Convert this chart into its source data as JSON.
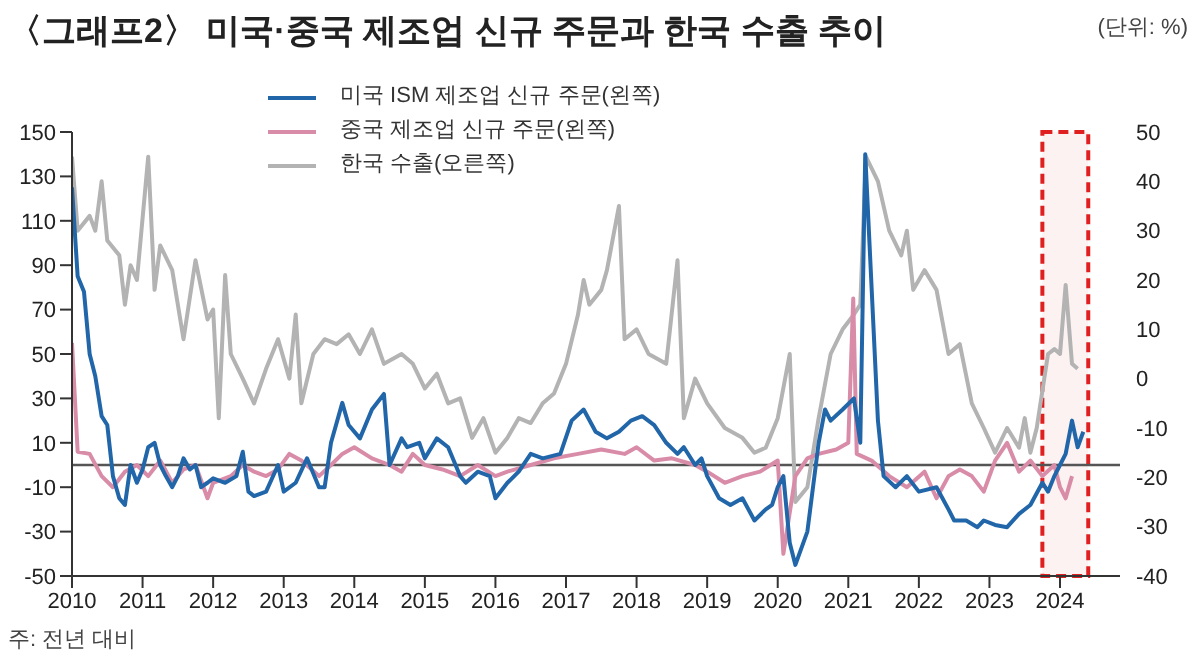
{
  "chart_data": {
    "type": "line",
    "title": "〈그래프2〉 미국·중국 제조업 신규 주문과 한국 수출 추이",
    "annotations": [
      "(단위: %)",
      "주: 전년 대비"
    ],
    "xlim": [
      2010,
      2024.85
    ],
    "xticks": [
      2010,
      2011,
      2012,
      2013,
      2014,
      2015,
      2016,
      2017,
      2018,
      2019,
      2020,
      2021,
      2022,
      2023,
      2024
    ],
    "ylim": [
      -50,
      150
    ],
    "yticks": [
      -50,
      -30,
      -10,
      10,
      30,
      50,
      70,
      90,
      110,
      130,
      150
    ],
    "y2lim": [
      -40,
      50
    ],
    "y2ticks": [
      -40,
      -30,
      -20,
      -10,
      0,
      10,
      20,
      30,
      40,
      50
    ],
    "legend": "top",
    "marker": "none",
    "line_style": "solid",
    "ref_lines": [
      {
        "axis": "y",
        "value": 0,
        "color": "#555555"
      }
    ],
    "bands": [
      {
        "axis": "x",
        "from": 2023.75,
        "to": 2024.4,
        "color": "#e02020"
      }
    ],
    "series": [
      {
        "name": "한국 수출(오른쪽)",
        "color": "#b3b3b3",
        "axis": "y2",
        "x": [
          2010,
          2010.08,
          2010.25,
          2010.33,
          2010.42,
          2010.5,
          2010.67,
          2010.75,
          2010.83,
          2010.92,
          2011.08,
          2011.17,
          2011.25,
          2011.42,
          2011.58,
          2011.75,
          2011.92,
          2012,
          2012.08,
          2012.17,
          2012.25,
          2012.42,
          2012.58,
          2012.75,
          2012.92,
          2013.08,
          2013.17,
          2013.25,
          2013.42,
          2013.58,
          2013.75,
          2013.92,
          2014.08,
          2014.25,
          2014.42,
          2014.67,
          2014.83,
          2015,
          2015.17,
          2015.33,
          2015.5,
          2015.67,
          2015.83,
          2016,
          2016.17,
          2016.33,
          2016.5,
          2016.67,
          2016.83,
          2017,
          2017.17,
          2017.25,
          2017.33,
          2017.5,
          2017.58,
          2017.75,
          2017.83,
          2018,
          2018.17,
          2018.42,
          2018.58,
          2018.67,
          2018.83,
          2019,
          2019.25,
          2019.5,
          2019.67,
          2019.83,
          2020,
          2020.17,
          2020.25,
          2020.42,
          2020.58,
          2020.75,
          2020.92,
          2021.08,
          2021.17,
          2021.25,
          2021.42,
          2021.58,
          2021.75,
          2021.83,
          2021.92,
          2022.08,
          2022.25,
          2022.42,
          2022.58,
          2022.75,
          2022.92,
          2023.08,
          2023.25,
          2023.42,
          2023.5,
          2023.58,
          2023.67,
          2023.83,
          2023.92,
          2024,
          2024.08,
          2024.17,
          2024.25
        ],
        "values": [
          45,
          30,
          33,
          30,
          40,
          28,
          25,
          15,
          23,
          20,
          45,
          18,
          27,
          22,
          8,
          24,
          12,
          14,
          -8,
          21,
          5,
          0,
          -5,
          2,
          8,
          0,
          13,
          -5,
          5,
          8,
          7,
          9,
          5,
          10,
          3,
          5,
          3,
          -2,
          1,
          -5,
          -4,
          -12,
          -8,
          -15,
          -12,
          -8,
          -9,
          -5,
          -3,
          3,
          13,
          20,
          15,
          18,
          22,
          35,
          8,
          10,
          5,
          3,
          24,
          -8,
          0,
          -5,
          -10,
          -12,
          -15,
          -14,
          -8,
          5,
          -25,
          -22,
          -8,
          5,
          10,
          13,
          15,
          45,
          40,
          30,
          25,
          30,
          18,
          22,
          18,
          5,
          7,
          -5,
          -10,
          -15,
          -10,
          -14,
          -8,
          -15,
          -10,
          5,
          6,
          5,
          19,
          3,
          2
        ]
      },
      {
        "name": "중국 제조업 신규 주문(왼쪽)",
        "color": "#d98ca8",
        "x": [
          2010,
          2010.08,
          2010.25,
          2010.42,
          2010.58,
          2010.75,
          2010.92,
          2011.08,
          2011.25,
          2011.42,
          2011.58,
          2011.75,
          2011.92,
          2012,
          2012.25,
          2012.42,
          2012.58,
          2012.75,
          2012.92,
          2013.08,
          2013.25,
          2013.5,
          2013.67,
          2013.83,
          2014,
          2014.25,
          2014.5,
          2014.67,
          2014.83,
          2015,
          2015.25,
          2015.5,
          2015.75,
          2016,
          2016.17,
          2016.5,
          2016.83,
          2017.17,
          2017.5,
          2017.83,
          2018,
          2018.25,
          2018.5,
          2018.83,
          2019,
          2019.25,
          2019.5,
          2019.75,
          2020,
          2020.08,
          2020.25,
          2020.42,
          2020.58,
          2020.83,
          2021,
          2021.07,
          2021.12,
          2021.33,
          2021.58,
          2021.83,
          2022.08,
          2022.25,
          2022.42,
          2022.58,
          2022.75,
          2022.92,
          2023.08,
          2023.25,
          2023.42,
          2023.58,
          2023.75,
          2023.92,
          2024,
          2024.08,
          2024.17
        ],
        "values": [
          55,
          6,
          5,
          -5,
          -10,
          -3,
          0,
          -5,
          2,
          -8,
          -2,
          0,
          -15,
          -8,
          -5,
          0,
          -3,
          -5,
          -2,
          5,
          2,
          -5,
          0,
          5,
          8,
          3,
          0,
          -3,
          5,
          0,
          -2,
          -5,
          0,
          -5,
          -3,
          0,
          3,
          5,
          7,
          5,
          8,
          2,
          3,
          0,
          -3,
          -8,
          -5,
          -3,
          2,
          -40,
          -5,
          3,
          5,
          7,
          10,
          75,
          5,
          2,
          -5,
          -10,
          -3,
          -15,
          -5,
          -2,
          -5,
          -12,
          2,
          10,
          -3,
          2,
          -5,
          0,
          -10,
          -15,
          -5
        ]
      },
      {
        "name": "미국 ISM 제조업 신규 주문(왼쪽)",
        "color": "#2266aa",
        "x": [
          2010,
          2010.08,
          2010.17,
          2010.25,
          2010.33,
          2010.42,
          2010.5,
          2010.58,
          2010.67,
          2010.75,
          2010.83,
          2010.92,
          2011,
          2011.08,
          2011.17,
          2011.25,
          2011.33,
          2011.42,
          2011.5,
          2011.58,
          2011.67,
          2011.75,
          2011.83,
          2011.92,
          2012,
          2012.17,
          2012.33,
          2012.42,
          2012.5,
          2012.58,
          2012.75,
          2012.92,
          2013,
          2013.17,
          2013.33,
          2013.5,
          2013.58,
          2013.67,
          2013.83,
          2013.92,
          2014.08,
          2014.25,
          2014.42,
          2014.5,
          2014.67,
          2014.75,
          2014.92,
          2015,
          2015.17,
          2015.33,
          2015.5,
          2015.58,
          2015.75,
          2015.92,
          2016,
          2016.17,
          2016.33,
          2016.5,
          2016.67,
          2016.92,
          2017.08,
          2017.25,
          2017.42,
          2017.58,
          2017.75,
          2017.92,
          2018.08,
          2018.25,
          2018.42,
          2018.58,
          2018.67,
          2018.83,
          2018.92,
          2019,
          2019.17,
          2019.33,
          2019.5,
          2019.67,
          2019.83,
          2019.92,
          2020,
          2020.08,
          2020.17,
          2020.25,
          2020.42,
          2020.58,
          2020.67,
          2020.75,
          2020.92,
          2021.08,
          2021.17,
          2021.24,
          2021.42,
          2021.5,
          2021.67,
          2021.83,
          2022,
          2022.25,
          2022.42,
          2022.5,
          2022.67,
          2022.83,
          2022.92,
          2023.08,
          2023.25,
          2023.42,
          2023.58,
          2023.75,
          2023.83,
          2023.92,
          2024,
          2024.08,
          2024.17,
          2024.25,
          2024.33
        ],
        "values": [
          125,
          85,
          78,
          50,
          40,
          22,
          18,
          -5,
          -15,
          -18,
          0,
          -8,
          -2,
          8,
          10,
          0,
          -5,
          -10,
          -5,
          3,
          -2,
          0,
          -10,
          -8,
          -6,
          -8,
          -5,
          6,
          -12,
          -14,
          -12,
          0,
          -12,
          -8,
          3,
          -10,
          -10,
          10,
          28,
          18,
          12,
          25,
          32,
          0,
          12,
          8,
          10,
          3,
          12,
          8,
          -5,
          -8,
          -3,
          -5,
          -15,
          -8,
          -3,
          5,
          3,
          5,
          20,
          25,
          15,
          12,
          15,
          20,
          22,
          18,
          10,
          5,
          8,
          0,
          3,
          -5,
          -15,
          -18,
          -15,
          -25,
          -20,
          -18,
          -10,
          -5,
          -35,
          -45,
          -30,
          10,
          25,
          20,
          25,
          30,
          10,
          140,
          20,
          -5,
          -10,
          -5,
          -12,
          -10,
          -20,
          -25,
          -25,
          -28,
          -25,
          -27,
          -28,
          -22,
          -18,
          -8,
          -12,
          -5,
          0,
          5,
          20,
          8,
          15
        ]
      }
    ]
  }
}
